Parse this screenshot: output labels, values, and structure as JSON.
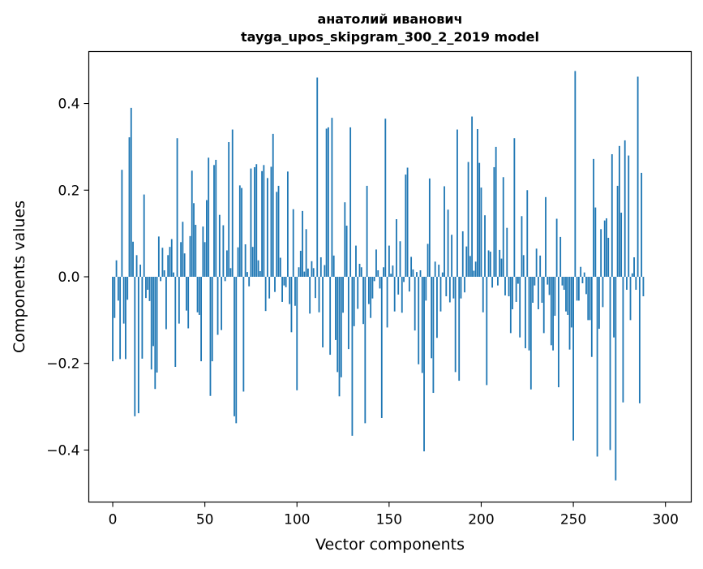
{
  "chart_data": {
    "type": "bar",
    "title_line1": "анатолий иванович",
    "title_line2": "tayga_upos_skipgram_300_2_2019 model",
    "xlabel": "Vector components",
    "ylabel": "Components values",
    "xlim": [
      -13,
      314
    ],
    "ylim": [
      -0.52,
      0.52
    ],
    "xticks": [
      0,
      50,
      100,
      150,
      200,
      250,
      300
    ],
    "xtick_labels": [
      "0",
      "50",
      "100",
      "150",
      "200",
      "250",
      "300"
    ],
    "yticks": [
      -0.4,
      -0.2,
      0.0,
      0.2,
      0.4
    ],
    "ytick_labels": [
      "−0.4",
      "−0.2",
      "0.0",
      "0.2",
      "0.4"
    ],
    "bar_color": "#1f77b4",
    "grid": false,
    "x_start": 0,
    "values": [
      -0.195,
      -0.095,
      0.038,
      -0.055,
      -0.19,
      0.247,
      -0.108,
      -0.19,
      -0.053,
      0.322,
      0.39,
      0.081,
      -0.322,
      0.05,
      -0.315,
      0.028,
      -0.189,
      0.19,
      -0.049,
      -0.03,
      -0.056,
      -0.214,
      -0.16,
      -0.259,
      -0.221,
      0.093,
      -0.01,
      0.067,
      0.015,
      -0.121,
      0.05,
      0.069,
      0.087,
      0.01,
      -0.208,
      0.32,
      -0.108,
      0.08,
      0.127,
      0.054,
      -0.078,
      -0.119,
      0.094,
      0.245,
      0.17,
      0.12,
      -0.082,
      -0.088,
      -0.195,
      0.116,
      0.08,
      0.177,
      0.275,
      -0.275,
      -0.195,
      0.258,
      0.27,
      -0.134,
      0.143,
      -0.123,
      0.119,
      -0.01,
      0.061,
      0.311,
      0.02,
      0.34,
      -0.322,
      -0.338,
      0.068,
      0.211,
      0.205,
      -0.265,
      0.075,
      0.011,
      -0.022,
      0.25,
      0.069,
      0.253,
      0.26,
      0.038,
      0.013,
      0.244,
      0.258,
      -0.079,
      0.228,
      -0.05,
      0.254,
      0.33,
      -0.035,
      0.196,
      0.21,
      0.044,
      -0.058,
      -0.02,
      -0.024,
      0.243,
      -0.063,
      -0.128,
      0.156,
      -0.067,
      -0.262,
      0.022,
      0.06,
      0.152,
      0.012,
      0.11,
      0.019,
      -0.085,
      0.036,
      0.02,
      -0.049,
      0.46,
      -0.082,
      0.045,
      -0.163,
      0.027,
      0.342,
      0.345,
      -0.18,
      0.367,
      0.049,
      -0.146,
      -0.22,
      -0.276,
      -0.232,
      -0.083,
      0.172,
      0.118,
      -0.167,
      0.345,
      -0.367,
      -0.114,
      0.072,
      -0.074,
      0.03,
      0.022,
      -0.109,
      -0.338,
      0.21,
      -0.063,
      -0.095,
      -0.05,
      -0.01,
      0.063,
      0.015,
      -0.027,
      -0.326,
      0.022,
      0.365,
      -0.117,
      0.072,
      0.007,
      0.026,
      -0.08,
      0.133,
      -0.041,
      0.082,
      -0.083,
      -0.012,
      0.236,
      0.252,
      -0.034,
      0.046,
      0.017,
      -0.124,
      0.011,
      -0.202,
      0.015,
      -0.222,
      -0.403,
      -0.055,
      0.076,
      0.227,
      -0.188,
      -0.268,
      0.035,
      -0.141,
      0.028,
      -0.08,
      0.01,
      0.209,
      -0.045,
      0.155,
      -0.059,
      0.097,
      -0.05,
      -0.22,
      0.34,
      -0.24,
      -0.05,
      0.105,
      -0.036,
      0.07,
      0.265,
      0.048,
      0.37,
      0.014,
      0.035,
      0.341,
      0.263,
      0.206,
      -0.082,
      0.142,
      -0.25,
      0.061,
      0.058,
      -0.025,
      0.253,
      0.3,
      -0.02,
      0.062,
      0.042,
      0.23,
      -0.043,
      0.113,
      -0.045,
      -0.13,
      -0.075,
      0.32,
      -0.058,
      -0.016,
      -0.14,
      0.14,
      0.05,
      -0.165,
      0.2,
      -0.17,
      -0.26,
      -0.06,
      -0.02,
      0.065,
      -0.075,
      0.049,
      -0.06,
      -0.13,
      0.184,
      -0.018,
      -0.042,
      -0.158,
      -0.17,
      -0.09,
      0.134,
      -0.255,
      0.092,
      -0.02,
      -0.03,
      -0.08,
      -0.088,
      -0.168,
      -0.117,
      -0.378,
      0.475,
      -0.055,
      -0.055,
      0.023,
      -0.015,
      0.01,
      -0.04,
      -0.1,
      -0.1,
      -0.185,
      0.272,
      0.16,
      -0.415,
      -0.12,
      0.11,
      -0.07,
      0.13,
      0.135,
      0.09,
      -0.4,
      0.283,
      -0.14,
      -0.47,
      0.21,
      0.302,
      0.148,
      -0.29,
      0.315,
      -0.03,
      0.28,
      -0.1,
      0.008,
      0.045,
      -0.03,
      0.462,
      -0.292,
      0.24,
      -0.045
    ]
  }
}
